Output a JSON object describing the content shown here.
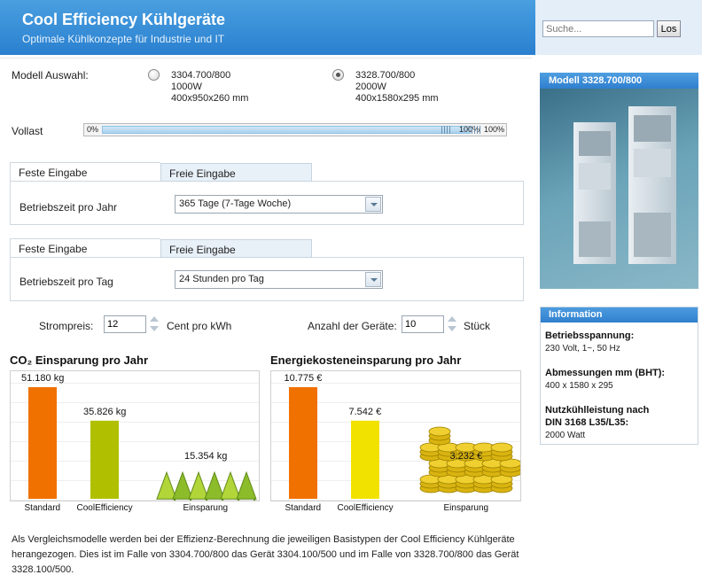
{
  "header": {
    "title": "Cool Efficiency Kühlgeräte",
    "subtitle": "Optimale Kühlkonzepte für Industrie und IT",
    "search_placeholder": "Suche...",
    "search_button": "Los"
  },
  "model": {
    "label": "Modell Auswahl:",
    "options": [
      {
        "name": "3304.700/800",
        "power": "1000W",
        "dims": "400x950x260 mm",
        "selected": false
      },
      {
        "name": "3328.700/800",
        "power": "2000W",
        "dims": "400x1580x295 mm",
        "selected": true
      }
    ]
  },
  "vollast": {
    "label": "Vollast",
    "min_label": "0%",
    "marker_label": "100%",
    "max_label": "100%",
    "value_percent": 100
  },
  "panel1": {
    "tab_active": "Feste Eingabe",
    "tab_inactive": "Freie Eingabe",
    "field_label": "Betriebszeit pro Jahr",
    "selected": "365 Tage (7-Tage Woche)"
  },
  "panel2": {
    "tab_active": "Feste Eingabe",
    "tab_inactive": "Freie Eingabe",
    "field_label": "Betriebszeit pro Tag",
    "selected": "24 Stunden pro Tag"
  },
  "strompreis": {
    "label": "Strompreis:",
    "value": "12",
    "unit": "Cent pro kWh"
  },
  "geraete": {
    "label": "Anzahl der Geräte:",
    "value": "10",
    "unit": "Stück"
  },
  "chart_data": [
    {
      "type": "bar",
      "title": "CO₂ Einsparung pro Jahr",
      "categories": [
        "Standard",
        "CoolEfficiency",
        "Einsparung"
      ],
      "values": [
        51180,
        35826,
        15354
      ],
      "value_labels": [
        "51.180 kg",
        "35.826 kg",
        "15.354 kg"
      ],
      "colors": [
        "#f07000",
        "#b0c000",
        "#7aa020"
      ],
      "savings_icon": "trees-icon"
    },
    {
      "type": "bar",
      "title": "Energiekosteneinsparung pro Jahr",
      "categories": [
        "Standard",
        "CoolEfficiency",
        "Einsparung"
      ],
      "values": [
        10775,
        7542,
        3232
      ],
      "value_labels": [
        "10.775 €",
        "7.542 €",
        "3.232 €"
      ],
      "colors": [
        "#f07000",
        "#f2e200",
        "#d4b400"
      ],
      "savings_icon": "coins-icon"
    }
  ],
  "sidebar": {
    "model_header": "Modell 3328.700/800",
    "info_header": "Information",
    "items": [
      {
        "label": "Betriebsspannung:",
        "value": "230 Volt, 1~, 50 Hz"
      },
      {
        "label": "Abmessungen mm (BHT):",
        "value": "400 x 1580 x 295"
      },
      {
        "label": "Nutzkühlleistung nach",
        "label2": "DIN 3168 L35/L35:",
        "value": "2000 Watt"
      }
    ]
  },
  "footer": {
    "text": "Als Vergleichsmodelle werden bei der Effizienz-Berechnung die jeweiligen Basistypen der Cool Efficiency Kühlgeräte herangezogen. Dies ist im Falle von 3304.700/800 das Gerät 3304.100/500 und im Falle von 3328.700/800 das Gerät 3328.100/500."
  }
}
